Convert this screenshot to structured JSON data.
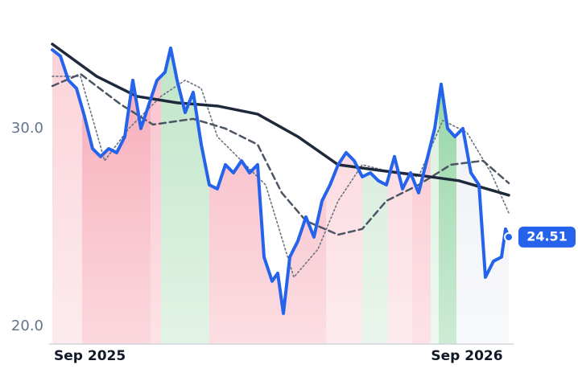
{
  "chart_data": {
    "type": "line",
    "xlim": [
      0,
      56.7
    ],
    "ylim": [
      19.1,
      36.5
    ],
    "xticks": [
      {
        "value": 0,
        "label": "Sep 2025"
      },
      {
        "value": 51.5,
        "label": "Sep 2026"
      }
    ],
    "yticks": [
      {
        "value": 20,
        "label": "20.0"
      },
      {
        "value": 30,
        "label": "30.0"
      }
    ],
    "bands": [
      {
        "x0": 0,
        "x1": 3.7,
        "color": "#fbd3da"
      },
      {
        "x0": 3.7,
        "x1": 5.8,
        "color": "#f7a9b6"
      },
      {
        "x0": 5.8,
        "x1": 12.2,
        "color": "#f7a9b6"
      },
      {
        "x0": 12.2,
        "x1": 13.5,
        "color": "#f9c0cb"
      },
      {
        "x0": 13.5,
        "x1": 19.5,
        "color": "#bfe5c8"
      },
      {
        "x0": 19.5,
        "x1": 34,
        "color": "#f7b5c1"
      },
      {
        "x0": 34,
        "x1": 38.5,
        "color": "#fbd3da"
      },
      {
        "x0": 38.5,
        "x1": 41.7,
        "color": "#cfe9d5"
      },
      {
        "x0": 41.7,
        "x1": 44.7,
        "color": "#fbd3da"
      },
      {
        "x0": 44.7,
        "x1": 47,
        "color": "#f9c0cb"
      },
      {
        "x0": 47,
        "x1": 48,
        "color": "#d8efdd"
      },
      {
        "x0": 48,
        "x1": 50.2,
        "color": "#8fd3a0"
      },
      {
        "x0": 50.2,
        "x1": 56.7,
        "color": "#eef0f4"
      }
    ],
    "series": [
      {
        "color": "#2563eb",
        "dash": "solid",
        "x": [
          0,
          1,
          2,
          3,
          4,
          5,
          6,
          7,
          8,
          9,
          10,
          11,
          12,
          13,
          14,
          14.7,
          15.5,
          16.5,
          17.5,
          18.5,
          19.5,
          20.5,
          21.5,
          22.5,
          23.5,
          24.5,
          25.5,
          26.3,
          27.3,
          28,
          28.7,
          29.5,
          30.5,
          31.5,
          32.5,
          33.5,
          34.5,
          35.5,
          36.5,
          37.5,
          38.5,
          39.5,
          40.5,
          41.5,
          42.5,
          43.5,
          44.5,
          45.5,
          46.5,
          47.5,
          48.3,
          49.1,
          50,
          51,
          52,
          53,
          53.8,
          54.8,
          55.8,
          56.3,
          56.7
        ],
        "values": [
          33.98,
          33.66,
          32.44,
          32.03,
          30.61,
          28.98,
          28.58,
          28.98,
          28.78,
          29.59,
          32.44,
          30.0,
          31.22,
          32.44,
          32.85,
          34.07,
          32.44,
          30.81,
          31.83,
          29.19,
          27.15,
          26.95,
          28.17,
          27.76,
          28.37,
          27.76,
          28.17,
          23.5,
          22.28,
          22.68,
          20.65,
          23.5,
          24.31,
          25.53,
          24.51,
          26.34,
          27.15,
          28.17,
          28.78,
          28.37,
          27.56,
          27.76,
          27.36,
          27.15,
          28.58,
          26.95,
          27.76,
          26.75,
          28.37,
          30.0,
          32.24,
          30.0,
          29.59,
          30.0,
          27.76,
          27.15,
          22.48,
          23.29,
          23.5,
          24.92,
          24.51
        ]
      },
      {
        "color": "#1e293b",
        "dash": "solid",
        "x": [
          0,
          5.5,
          10.5,
          15.5,
          20.5,
          25.5,
          30.5,
          35.5,
          40.5,
          45.5,
          50.5,
          56.7
        ],
        "values": [
          34.27,
          32.64,
          31.63,
          31.3,
          31.14,
          30.73,
          29.59,
          28.17,
          27.89,
          27.64,
          27.36,
          26.63
        ]
      },
      {
        "color": "#4b5563",
        "dash": "dashed",
        "x": [
          0,
          3.5,
          8.5,
          12.5,
          17.5,
          21.5,
          25.5,
          28.5,
          31.5,
          35.5,
          38.5,
          41.5,
          45.5,
          49.5,
          53.5,
          56.7
        ],
        "values": [
          32.15,
          32.76,
          31.22,
          30.2,
          30.49,
          30.0,
          29.19,
          26.75,
          25.33,
          24.63,
          24.92,
          26.34,
          27.15,
          28.17,
          28.37,
          27.24
        ]
      },
      {
        "color": "#6b7280",
        "dash": "dotted",
        "x": [
          0,
          3.5,
          6.5,
          9.5,
          13.5,
          16.5,
          18.5,
          20.5,
          23.5,
          26.5,
          30,
          33,
          35.5,
          38.5,
          42.5,
          45.5,
          48.5,
          51.5,
          54.5,
          56.7
        ],
        "values": [
          32.64,
          32.64,
          28.37,
          30.0,
          31.63,
          32.44,
          32.03,
          29.59,
          28.37,
          27.15,
          22.48,
          23.9,
          26.34,
          28.17,
          27.76,
          27.56,
          30.41,
          29.8,
          27.76,
          25.73
        ]
      }
    ]
  }
}
